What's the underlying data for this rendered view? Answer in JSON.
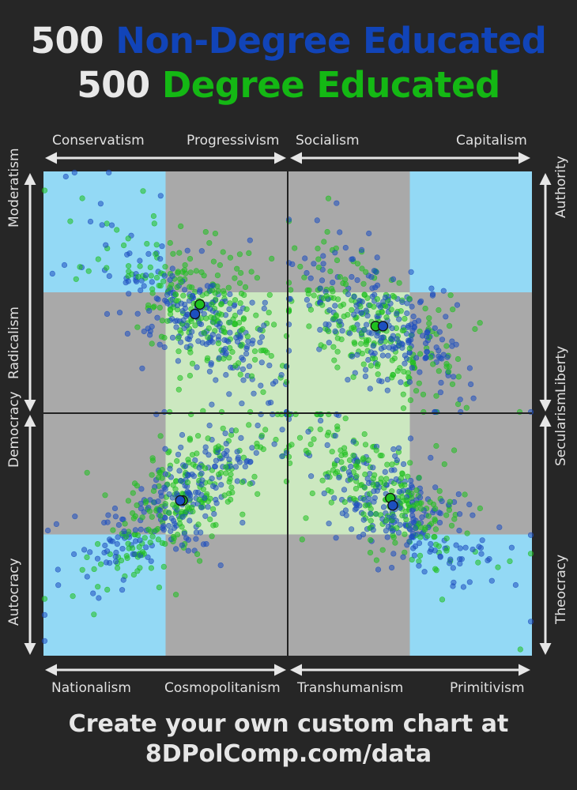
{
  "title": {
    "line1_count": "500",
    "line1_group": "Non-Degree Educated",
    "line2_count": "500",
    "line2_group": "Degree Educated"
  },
  "axes": {
    "top_left": [
      "Conservatism",
      "Progressivism"
    ],
    "top_right": [
      "Socialism",
      "Capitalism"
    ],
    "bottom_left": [
      "Nationalism",
      "Cosmopolitanism"
    ],
    "bottom_right": [
      "Transhumanism",
      "Primitivism"
    ],
    "left_top": [
      "Moderatism",
      "Radicalism"
    ],
    "left_bottom": [
      "Democracy",
      "Autocracy"
    ],
    "right_top": [
      "Authority",
      "Liberty"
    ],
    "right_bottom": [
      "Secularism",
      "Theocracy"
    ]
  },
  "footer": {
    "line1": "Create your own custom chart at",
    "line2": "8DPolComp.com/data"
  },
  "colors": {
    "background": "#262626",
    "non_degree": "#1d4fbf",
    "degree": "#1fbf1f",
    "light_blue": "#93d9f5",
    "gray": "#a9a9a9",
    "light_green": "#cce8c0"
  },
  "chart_data": {
    "type": "scatter",
    "description_axes": "Each quadrant is a 2D scale from 0 to 1; x increases to the right, y increases downward.",
    "series": [
      {
        "name": "Non-Degree Educated",
        "color": "#1d4fbf",
        "count": 500
      },
      {
        "name": "Degree Educated",
        "color": "#1fbf1f",
        "count": 500
      }
    ],
    "quadrants": [
      {
        "id": "progressivism-radicalism",
        "x_axis": [
          "Conservatism",
          "Progressivism"
        ],
        "y_axis": [
          "Moderatism",
          "Radicalism"
        ],
        "means": {
          "Non-Degree Educated": [
            0.62,
            0.59
          ],
          "Degree Educated": [
            0.64,
            0.55
          ]
        },
        "spread": {
          "Non-Degree Educated": [
            0.5,
            0.25,
            0.7
          ],
          "Degree Educated": [
            0.64,
            0.55,
            0.5
          ]
        }
      },
      {
        "id": "capitalism-liberty",
        "x_axis": [
          "Socialism",
          "Capitalism"
        ],
        "y_axis": [
          "Authority",
          "Liberty"
        ],
        "means": {
          "Non-Degree Educated": [
            0.39,
            0.64
          ],
          "Degree Educated": [
            0.36,
            0.64
          ]
        },
        "spread": {
          "Non-Degree Educated": [
            0.45,
            0.6,
            0.6
          ],
          "Degree Educated": [
            0.3,
            0.65,
            0.6
          ]
        }
      },
      {
        "id": "cosmopolitanism-democracy",
        "x_axis": [
          "Nationalism",
          "Cosmopolitanism"
        ],
        "y_axis": [
          "Democracy",
          "Autocracy"
        ],
        "means": {
          "Non-Degree Educated": [
            0.56,
            0.36
          ],
          "Degree Educated": [
            0.57,
            0.36
          ]
        },
        "spread": {
          "Non-Degree Educated": [
            0.45,
            0.48,
            -0.75
          ],
          "Degree Educated": [
            0.62,
            0.3,
            -0.7
          ]
        }
      },
      {
        "id": "primitivism-theocracy",
        "x_axis": [
          "Transhumanism",
          "Primitivism"
        ],
        "y_axis": [
          "Secularism",
          "Theocracy"
        ],
        "means": {
          "Non-Degree Educated": [
            0.43,
            0.38
          ],
          "Degree Educated": [
            0.42,
            0.35
          ]
        },
        "spread": {
          "Non-Degree Educated": [
            0.4,
            0.38,
            0.65
          ],
          "Degree Educated": [
            0.33,
            0.45,
            0.7
          ]
        }
      }
    ],
    "zones": "Each quadrant is a 2x2 grid of background cells: light blue at the outer corner, light green toward the chart center, gray elsewhere."
  }
}
